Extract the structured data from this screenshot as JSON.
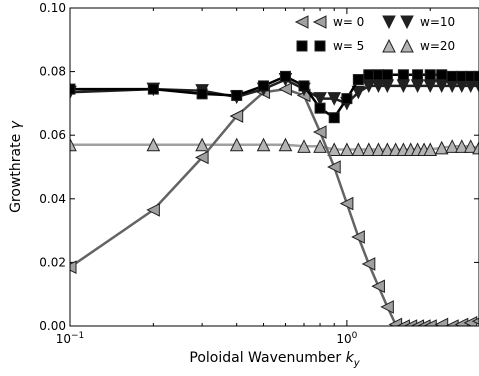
{
  "chart_data": {
    "type": "line",
    "xlabel_text": "Poloidal Wavenumber ",
    "xlabel_sym": "k",
    "xlabel_sub": "y",
    "ylabel_text": "Growthrate ",
    "ylabel_sym": "γ",
    "xscale": "log",
    "xlim": [
      0.1,
      3.0
    ],
    "ylim": [
      0.0,
      0.1
    ],
    "yticks": [
      {
        "value": 0.0,
        "label": "0.00"
      },
      {
        "value": 0.02,
        "label": "0.02"
      },
      {
        "value": 0.04,
        "label": "0.04"
      },
      {
        "value": 0.06,
        "label": "0.06"
      },
      {
        "value": 0.08,
        "label": "0.08"
      },
      {
        "value": 0.1,
        "label": "0.10"
      }
    ],
    "xticks": [
      {
        "value": 0.1,
        "base": "10",
        "exp": "−1"
      },
      {
        "value": 1.0,
        "base": "10",
        "exp": "0"
      }
    ],
    "grid": false,
    "legend_position": "top-right",
    "series": [
      {
        "name": "w= 0",
        "marker": "triangle-left",
        "line_color": "#646464",
        "marker_fill": "#a0a0a0",
        "points": [
          [
            0.1,
            0.0185
          ],
          [
            0.2,
            0.0365
          ],
          [
            0.3,
            0.053
          ],
          [
            0.4,
            0.066
          ],
          [
            0.5,
            0.0735
          ],
          [
            0.6,
            0.0745
          ],
          [
            0.7,
            0.0725
          ],
          [
            0.8,
            0.061
          ],
          [
            0.9,
            0.05
          ],
          [
            1.0,
            0.0385
          ],
          [
            1.1,
            0.028
          ],
          [
            1.2,
            0.0195
          ],
          [
            1.3,
            0.0125
          ],
          [
            1.4,
            0.006
          ],
          [
            1.5,
            0.0005
          ],
          [
            1.6,
            0.0
          ],
          [
            1.7,
            0.0
          ],
          [
            1.8,
            0.0
          ],
          [
            1.9,
            0.0
          ],
          [
            2.0,
            0.0
          ],
          [
            2.2,
            0.0005
          ],
          [
            2.4,
            0.0
          ],
          [
            2.6,
            0.0005
          ],
          [
            2.8,
            0.001
          ],
          [
            3.0,
            0.0015
          ]
        ]
      },
      {
        "name": "w= 5",
        "marker": "square",
        "line_color": "#000000",
        "marker_fill": "#000000",
        "points": [
          [
            0.1,
            0.0745
          ],
          [
            0.2,
            0.0745
          ],
          [
            0.3,
            0.073
          ],
          [
            0.4,
            0.0725
          ],
          [
            0.5,
            0.0755
          ],
          [
            0.6,
            0.0785
          ],
          [
            0.7,
            0.0755
          ],
          [
            0.8,
            0.0685
          ],
          [
            0.9,
            0.0655
          ],
          [
            1.0,
            0.0715
          ],
          [
            1.1,
            0.0775
          ],
          [
            1.2,
            0.079
          ],
          [
            1.3,
            0.079
          ],
          [
            1.4,
            0.079
          ],
          [
            1.6,
            0.079
          ],
          [
            1.8,
            0.079
          ],
          [
            2.0,
            0.079
          ],
          [
            2.2,
            0.079
          ],
          [
            2.4,
            0.0785
          ],
          [
            2.6,
            0.0785
          ],
          [
            2.8,
            0.0785
          ],
          [
            3.0,
            0.0785
          ]
        ]
      },
      {
        "name": "w=10",
        "marker": "triangle-down",
        "line_color": "#202020",
        "marker_fill": "#202020",
        "points": [
          [
            0.1,
            0.0735
          ],
          [
            0.2,
            0.0745
          ],
          [
            0.3,
            0.074
          ],
          [
            0.4,
            0.072
          ],
          [
            0.5,
            0.0745
          ],
          [
            0.6,
            0.0775
          ],
          [
            0.7,
            0.0745
          ],
          [
            0.8,
            0.0715
          ],
          [
            0.9,
            0.0715
          ],
          [
            1.0,
            0.07
          ],
          [
            1.1,
            0.0735
          ],
          [
            1.2,
            0.0755
          ],
          [
            1.3,
            0.0755
          ],
          [
            1.4,
            0.0755
          ],
          [
            1.6,
            0.0755
          ],
          [
            1.8,
            0.0755
          ],
          [
            2.0,
            0.0755
          ],
          [
            2.2,
            0.0755
          ],
          [
            2.4,
            0.0755
          ],
          [
            2.6,
            0.0755
          ],
          [
            2.8,
            0.0755
          ],
          [
            3.0,
            0.0755
          ]
        ]
      },
      {
        "name": "w=20",
        "marker": "triangle-up",
        "line_color": "#a0a0a0",
        "marker_fill": "#b4b4b4",
        "points": [
          [
            0.1,
            0.057
          ],
          [
            0.2,
            0.057
          ],
          [
            0.3,
            0.057
          ],
          [
            0.4,
            0.057
          ],
          [
            0.5,
            0.057
          ],
          [
            0.6,
            0.057
          ],
          [
            0.7,
            0.0565
          ],
          [
            0.8,
            0.0565
          ],
          [
            0.9,
            0.0555
          ],
          [
            1.0,
            0.0555
          ],
          [
            1.1,
            0.0555
          ],
          [
            1.2,
            0.0555
          ],
          [
            1.3,
            0.0555
          ],
          [
            1.4,
            0.0555
          ],
          [
            1.5,
            0.0555
          ],
          [
            1.6,
            0.0555
          ],
          [
            1.7,
            0.0555
          ],
          [
            1.8,
            0.0555
          ],
          [
            1.9,
            0.0555
          ],
          [
            2.0,
            0.0555
          ],
          [
            2.2,
            0.056
          ],
          [
            2.4,
            0.0565
          ],
          [
            2.6,
            0.0565
          ],
          [
            2.8,
            0.0565
          ],
          [
            3.0,
            0.056
          ]
        ]
      }
    ]
  }
}
